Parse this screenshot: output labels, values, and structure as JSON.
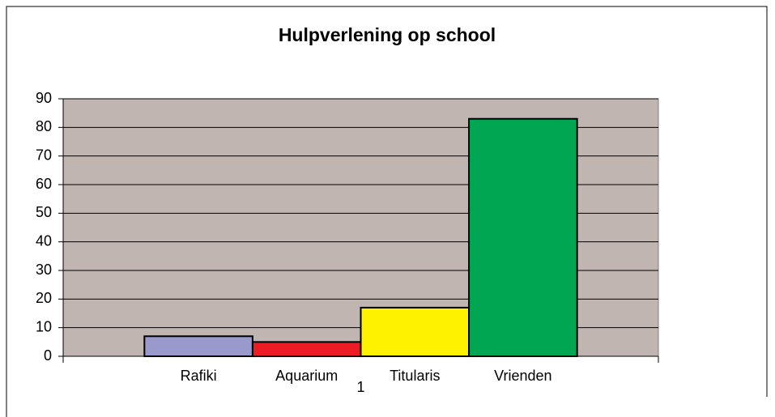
{
  "chart_data": {
    "type": "bar",
    "title": "Hulpverlening op school",
    "categories": [
      "1"
    ],
    "series": [
      {
        "name": "Rafiki",
        "color": "#9999cc",
        "values": [
          7
        ]
      },
      {
        "name": "Aquarium",
        "color": "#ed1c24",
        "values": [
          5
        ]
      },
      {
        "name": "Titularis",
        "color": "#fff200",
        "values": [
          17
        ]
      },
      {
        "name": "Vrienden",
        "color": "#00a651",
        "values": [
          83
        ]
      }
    ],
    "ylim": [
      0,
      90
    ],
    "yticks": [
      0,
      10,
      20,
      30,
      40,
      50,
      60,
      70,
      80,
      90
    ],
    "grid": true,
    "plot_background": "#c0b5b1"
  }
}
